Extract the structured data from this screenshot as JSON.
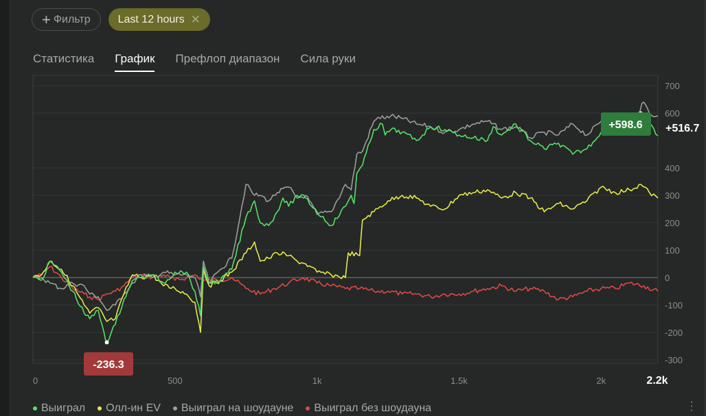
{
  "filters": {
    "filter_label": "Фильтр",
    "time_label": "Last 12 hours"
  },
  "tabs": [
    {
      "label": "Статистика",
      "active": false
    },
    {
      "label": "График",
      "active": true
    },
    {
      "label": "Префлоп диапазон",
      "active": false
    },
    {
      "label": "Сила руки",
      "active": false
    }
  ],
  "icons": {
    "plus": "plus-icon",
    "close": "close-icon",
    "more": "more-vertical-icon"
  },
  "chart_data": {
    "type": "line",
    "xlim": [
      0,
      2200
    ],
    "ylim": [
      -300,
      700
    ],
    "x_ticks": [
      0,
      500,
      1000,
      1500,
      2000
    ],
    "x_tick_labels": [
      "0",
      "500",
      "1k",
      "1.5k",
      "2k"
    ],
    "x_end_label": "2.2k",
    "y_ticks": [
      700,
      600,
      400,
      300,
      200,
      100,
      0,
      -100,
      -200,
      -300
    ],
    "grid": true,
    "legend_position": "bottom-left",
    "annotations": [
      {
        "text": "+598.6",
        "x": 2140,
        "y": 598.6,
        "color": "#2e7d3c"
      },
      {
        "text": "+516.7",
        "x": 2200,
        "y": 516.7,
        "color": "none"
      },
      {
        "text": "-236.3",
        "x": 260,
        "y": -236.3,
        "color": "#a33a3a"
      }
    ],
    "series": [
      {
        "name": "Выиграл",
        "color": "#56e068",
        "x": [
          0,
          30,
          60,
          100,
          140,
          180,
          200,
          230,
          250,
          260,
          290,
          320,
          350,
          380,
          420,
          460,
          500,
          540,
          570,
          590,
          600,
          620,
          660,
          700,
          750,
          780,
          800,
          830,
          860,
          880,
          900,
          930,
          960,
          1000,
          1050,
          1100,
          1120,
          1130,
          1140,
          1160,
          1200,
          1230,
          1240,
          1260,
          1300,
          1350,
          1400,
          1450,
          1500,
          1550,
          1600,
          1620,
          1650,
          1700,
          1750,
          1800,
          1850,
          1900,
          1950,
          2000,
          2050,
          2100,
          2140,
          2170,
          2200
        ],
        "values": [
          0,
          -10,
          60,
          20,
          -50,
          -130,
          -150,
          -120,
          -200,
          -236,
          -170,
          -80,
          -10,
          0,
          10,
          -20,
          20,
          20,
          -50,
          -140,
          40,
          -20,
          -10,
          30,
          220,
          280,
          200,
          190,
          240,
          290,
          260,
          300,
          290,
          240,
          190,
          260,
          300,
          270,
          380,
          410,
          540,
          560,
          520,
          540,
          530,
          500,
          550,
          540,
          520,
          510,
          500,
          550,
          520,
          560,
          500,
          470,
          490,
          450,
          470,
          530,
          550,
          560,
          598,
          560,
          517
        ]
      },
      {
        "name": "Олл-ин EV",
        "color": "#e8e84a",
        "x": [
          0,
          30,
          60,
          100,
          140,
          180,
          200,
          230,
          260,
          290,
          320,
          350,
          380,
          420,
          460,
          500,
          540,
          570,
          590,
          600,
          620,
          660,
          700,
          750,
          780,
          800,
          830,
          860,
          900,
          930,
          960,
          1000,
          1050,
          1100,
          1110,
          1150,
          1160,
          1200,
          1250,
          1300,
          1350,
          1400,
          1450,
          1500,
          1550,
          1600,
          1650,
          1700,
          1750,
          1800,
          1850,
          1900,
          1950,
          2000,
          2050,
          2100,
          2140,
          2170,
          2200
        ],
        "values": [
          0,
          10,
          60,
          30,
          -30,
          -100,
          -130,
          -110,
          -160,
          -150,
          -60,
          10,
          0,
          10,
          -30,
          -40,
          -60,
          -90,
          -200,
          30,
          -30,
          -10,
          20,
          90,
          130,
          60,
          70,
          90,
          80,
          60,
          50,
          20,
          10,
          0,
          90,
          80,
          210,
          240,
          280,
          300,
          290,
          260,
          250,
          300,
          310,
          320,
          290,
          310,
          290,
          240,
          270,
          250,
          280,
          330,
          310,
          320,
          340,
          310,
          290
        ]
      },
      {
        "name": "Выиграл на шоудауне",
        "color": "#9b9e9b",
        "x": [
          0,
          30,
          60,
          100,
          140,
          180,
          200,
          230,
          260,
          290,
          320,
          350,
          380,
          420,
          460,
          500,
          540,
          570,
          590,
          600,
          620,
          660,
          700,
          750,
          780,
          800,
          830,
          860,
          900,
          930,
          960,
          1000,
          1050,
          1100,
          1120,
          1140,
          1160,
          1200,
          1230,
          1240,
          1260,
          1300,
          1350,
          1400,
          1450,
          1500,
          1550,
          1600,
          1650,
          1700,
          1750,
          1800,
          1850,
          1900,
          1950,
          2000,
          2050,
          2100,
          2130,
          2150,
          2170,
          2200
        ],
        "values": [
          0,
          0,
          -20,
          -40,
          -20,
          -30,
          -60,
          -70,
          -120,
          -100,
          -60,
          -20,
          10,
          0,
          20,
          10,
          10,
          0,
          -70,
          60,
          -20,
          30,
          70,
          340,
          300,
          300,
          280,
          310,
          330,
          290,
          300,
          230,
          240,
          340,
          320,
          450,
          460,
          570,
          590,
          580,
          590,
          580,
          560,
          550,
          530,
          540,
          560,
          570,
          540,
          550,
          510,
          530,
          520,
          560,
          520,
          570,
          580,
          590,
          600,
          640,
          600,
          590
        ]
      },
      {
        "name": "Выиграл без шоудауна",
        "color": "#e04848",
        "x": [
          0,
          30,
          60,
          100,
          140,
          180,
          200,
          230,
          260,
          290,
          320,
          350,
          380,
          420,
          460,
          500,
          540,
          570,
          600,
          650,
          700,
          750,
          800,
          850,
          900,
          950,
          1000,
          1050,
          1100,
          1150,
          1200,
          1250,
          1300,
          1350,
          1400,
          1450,
          1500,
          1550,
          1600,
          1650,
          1700,
          1750,
          1800,
          1850,
          1900,
          1950,
          2000,
          2050,
          2100,
          2150,
          2200
        ],
        "values": [
          0,
          10,
          40,
          0,
          -40,
          -60,
          -70,
          -80,
          -60,
          -50,
          -30,
          0,
          10,
          0,
          10,
          -10,
          0,
          10,
          -10,
          -10,
          0,
          -40,
          -60,
          -40,
          -20,
          0,
          -20,
          -30,
          -40,
          -40,
          -50,
          -50,
          -60,
          -60,
          -70,
          -60,
          -60,
          -50,
          -40,
          -30,
          -50,
          -40,
          -50,
          -80,
          -70,
          -50,
          -40,
          -40,
          -20,
          -30,
          -50
        ]
      }
    ]
  },
  "legend": [
    {
      "label": "Выиграл",
      "color": "#56e068"
    },
    {
      "label": "Олл-ин EV",
      "color": "#e8e84a"
    },
    {
      "label": "Выиграл на шоудауне",
      "color": "#9b9e9b"
    },
    {
      "label": "Выиграл без шоудауна",
      "color": "#e04848"
    }
  ]
}
